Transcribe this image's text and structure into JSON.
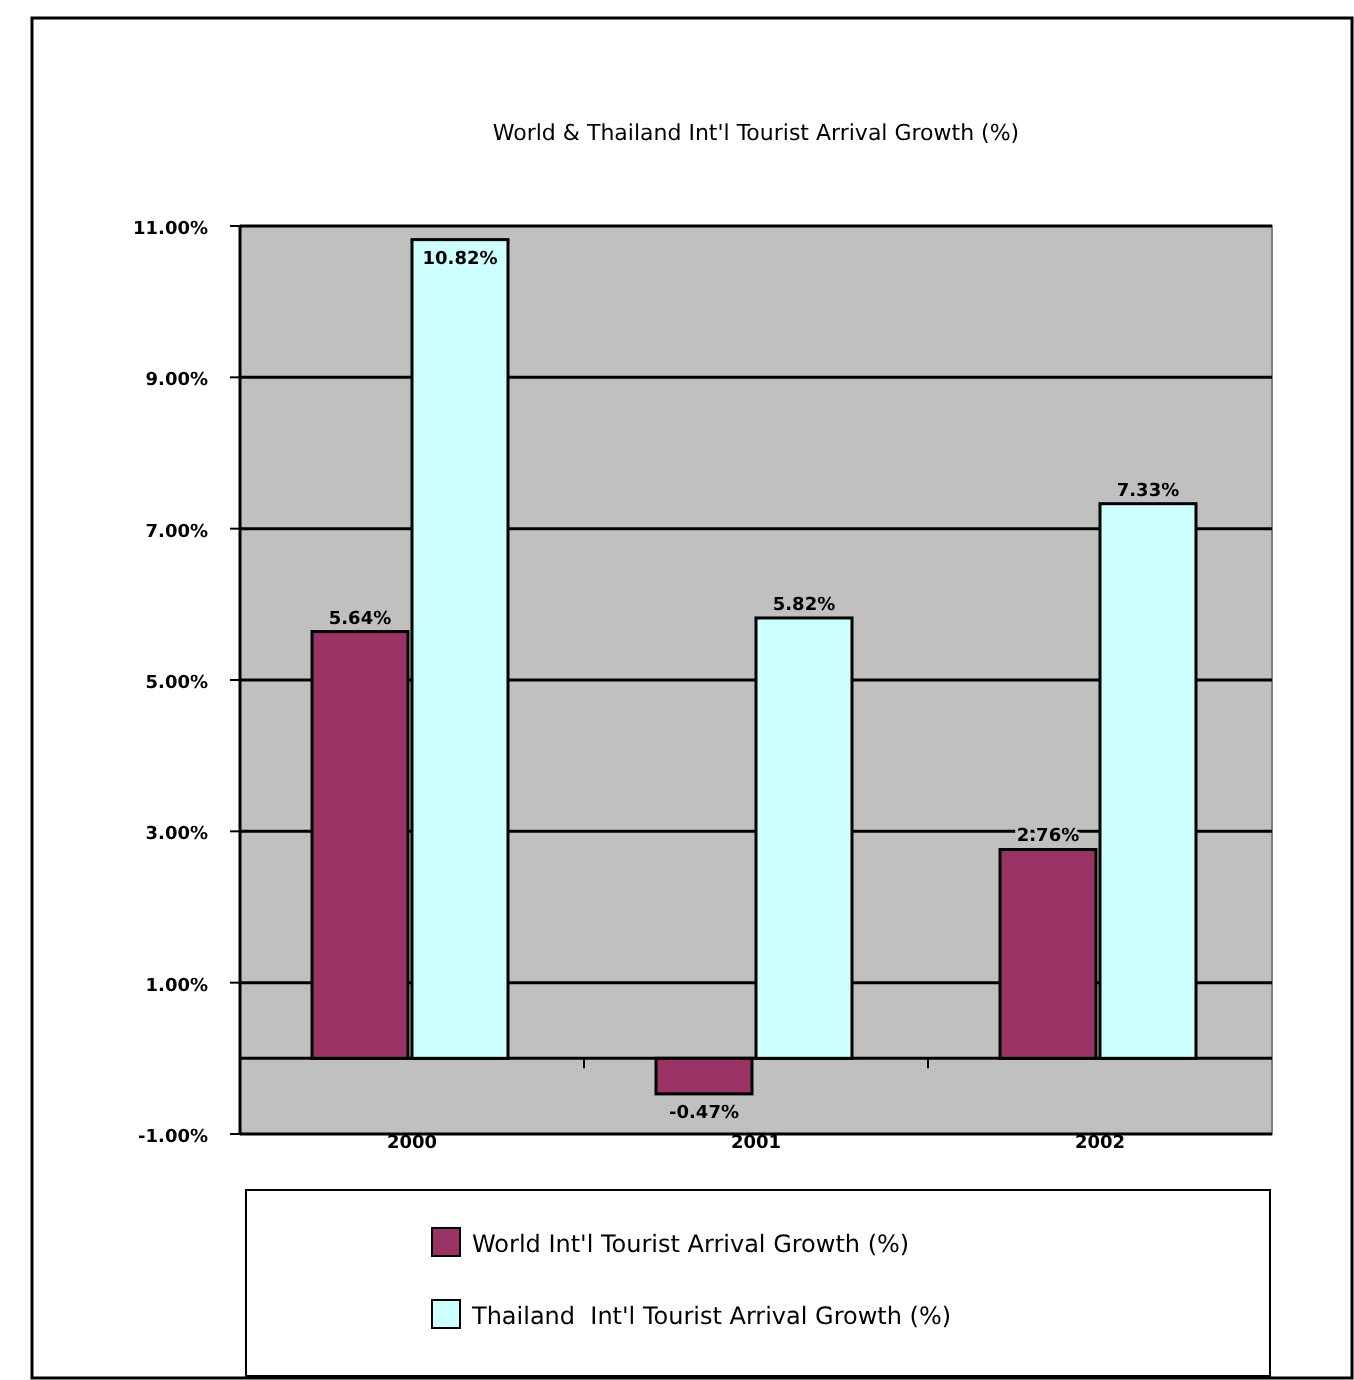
{
  "chart_data": {
    "type": "bar",
    "title": "World & Thailand Int'l Tourist Arrival Growth (%)",
    "categories": [
      "2000",
      "2001",
      "2002"
    ],
    "series": [
      {
        "name": "World Int'l Tourist Arrival Growth (%)",
        "color": "#993366",
        "values": [
          5.64,
          -0.47,
          2.76
        ],
        "value_labels": [
          "5.64%",
          "-0.47%",
          "2.76%"
        ]
      },
      {
        "name": "Thailand  Int'l Tourist Arrival Growth (%)",
        "color": "#ccffff",
        "values": [
          10.82,
          5.82,
          7.33
        ],
        "value_labels": [
          "10.82%",
          "5.82%",
          "7.33%"
        ]
      }
    ],
    "ylim": [
      -1,
      11
    ],
    "yticks": [
      {
        "value": -1,
        "label": "-1.00%"
      },
      {
        "value": 1,
        "label": "1.00%"
      },
      {
        "value": 3,
        "label": "3.00%"
      },
      {
        "value": 5,
        "label": "5.00%"
      },
      {
        "value": 7,
        "label": "7.00%"
      },
      {
        "value": 9,
        "label": "9.00%"
      },
      {
        "value": 11,
        "label": "11.00%"
      }
    ],
    "grid": "y",
    "legend": "bottom"
  }
}
